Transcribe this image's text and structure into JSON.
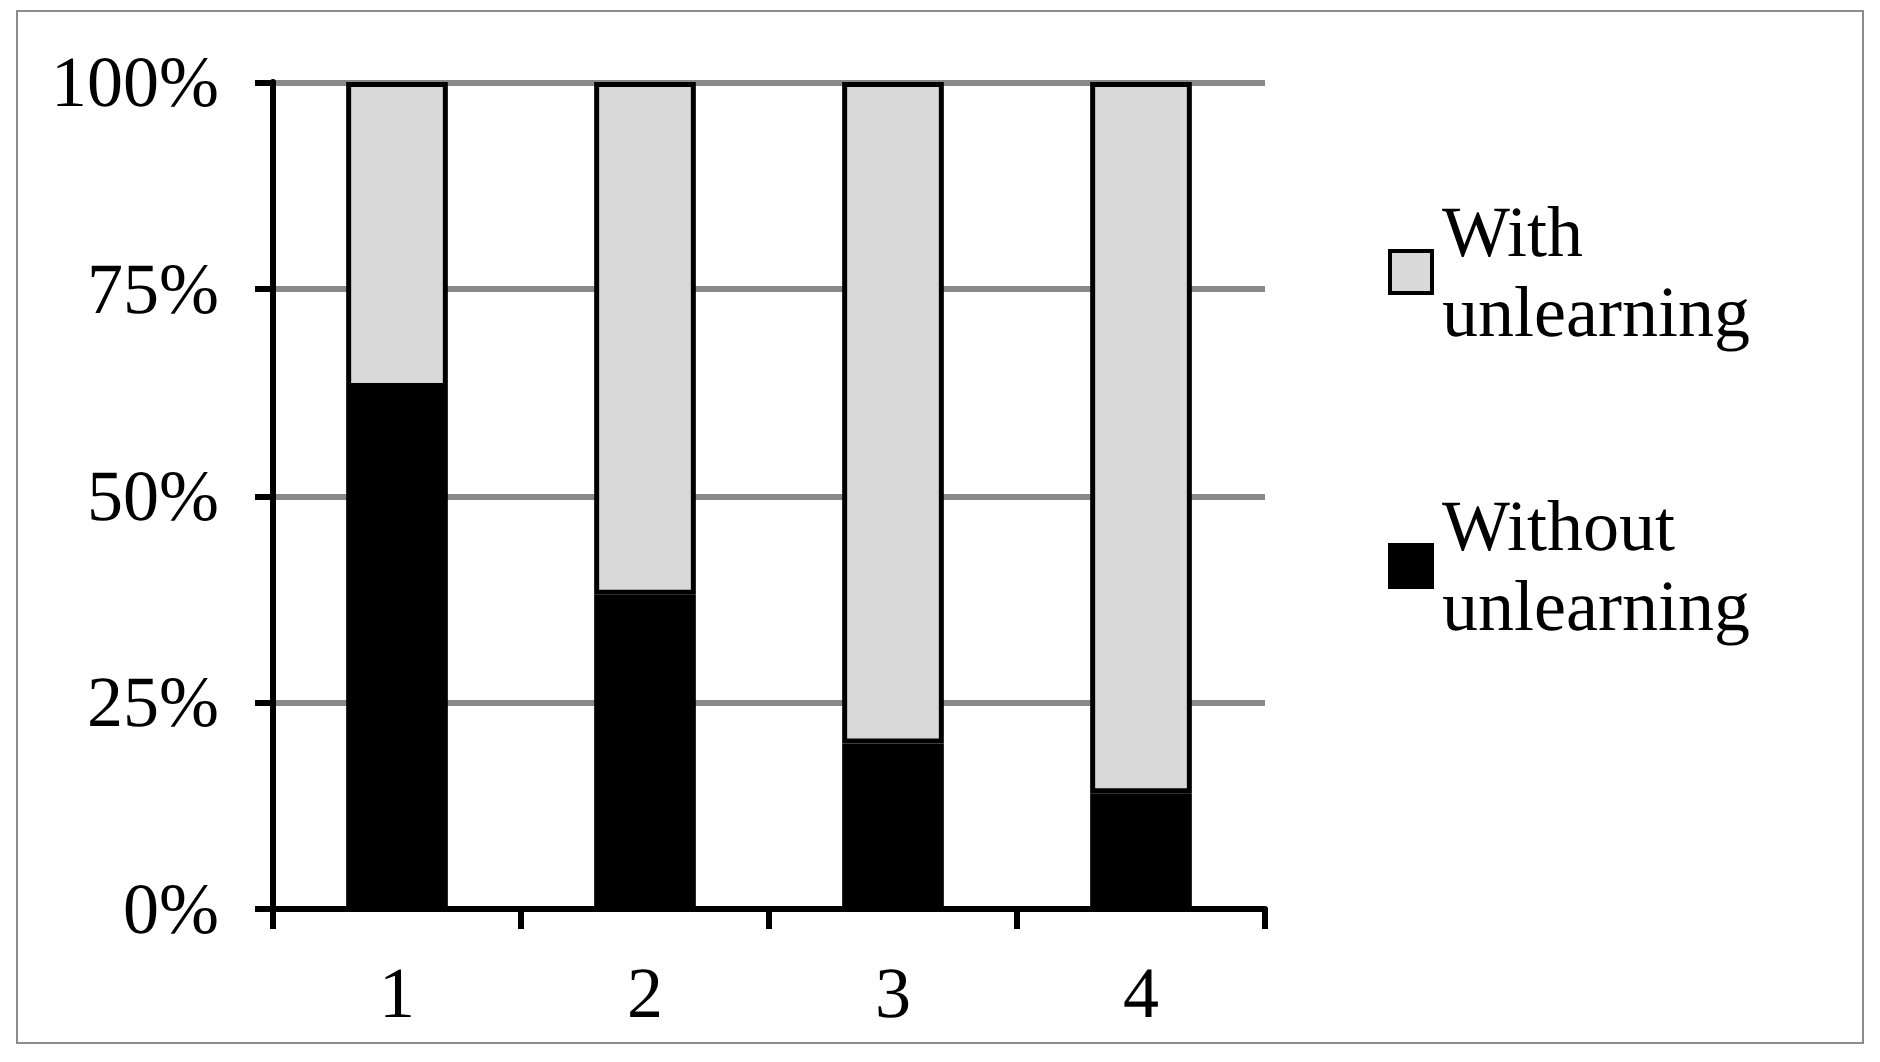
{
  "chart_data": {
    "type": "bar",
    "categories": [
      "1",
      "2",
      "3",
      "4"
    ],
    "series": [
      {
        "name": "Without unlearning",
        "color": "#000000",
        "values": [
          63,
          38,
          20,
          14
        ]
      },
      {
        "name": "With unlearning",
        "color": "#d9d9d9",
        "values": [
          37,
          62,
          80,
          86
        ]
      }
    ],
    "stacked": true,
    "ylim": [
      0,
      100
    ],
    "yticks": [
      {
        "value": 0,
        "label": "0%"
      },
      {
        "value": 25,
        "label": "25%"
      },
      {
        "value": 50,
        "label": "50%"
      },
      {
        "value": 75,
        "label": "75%"
      },
      {
        "value": 100,
        "label": "100%"
      }
    ],
    "grid": "y",
    "legend": "right"
  }
}
